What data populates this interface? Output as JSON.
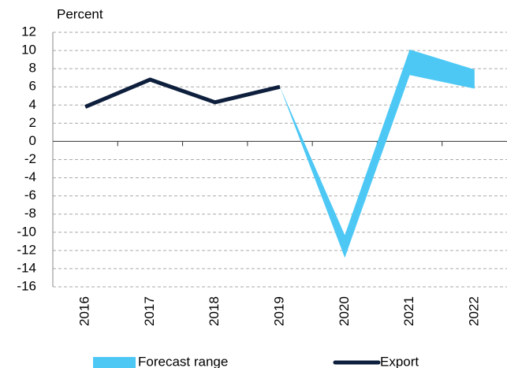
{
  "chart_data": {
    "type": "line",
    "y_label": "Percent",
    "categories": [
      "2016",
      "2017",
      "2018",
      "2019",
      "2020",
      "2021",
      "2022"
    ],
    "ylim": [
      -16,
      12
    ],
    "yticks": [
      -16,
      -14,
      -12,
      -10,
      -8,
      -6,
      -4,
      -2,
      0,
      2,
      4,
      6,
      8,
      10,
      12
    ],
    "grid": true,
    "series": [
      {
        "name": "Forecast range",
        "type": "range",
        "color": "#4dc8f5",
        "lower": [
          null,
          null,
          null,
          6.0,
          -12.8,
          7.3,
          5.8
        ],
        "upper": [
          null,
          null,
          null,
          6.0,
          -10.3,
          10.1,
          7.9
        ]
      },
      {
        "name": "Export",
        "type": "line",
        "color": "#0d1f3c",
        "values": [
          3.8,
          6.8,
          4.3,
          6.0,
          null,
          null,
          null
        ]
      }
    ]
  }
}
